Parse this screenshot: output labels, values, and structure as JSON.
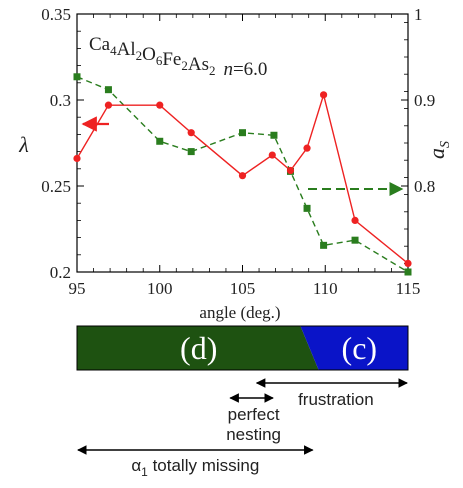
{
  "chart_data": {
    "type": "line",
    "annotation": {
      "compound_base": "Ca",
      "compound_parts": [
        {
          "text": "Ca",
          "sub": "4"
        },
        {
          "text": "Al",
          "sub": "2"
        },
        {
          "text": "O",
          "sub": "6"
        },
        {
          "text": "Fe",
          "sub": "2"
        },
        {
          "text": "As",
          "sub": "2"
        }
      ],
      "n_label": "n",
      "n_value": "=6.0"
    },
    "xlabel": "angle (deg.)",
    "ylabel_left": "λ",
    "ylabel_right_main": "a",
    "ylabel_right_sub": "S",
    "xlim": [
      95,
      115
    ],
    "ylim_left": [
      0.2,
      0.35
    ],
    "ylim_right": [
      0.7,
      1.0
    ],
    "x_ticks": [
      "95",
      "100",
      "105",
      "110",
      "115"
    ],
    "y_left_ticks": [
      "0.2",
      "0.25",
      "0.3",
      "0.35"
    ],
    "y_right_ticks": [
      "0.8",
      "0.9",
      "1"
    ],
    "series": [
      {
        "axis": "left",
        "color": "#ee2222",
        "marker": "circle",
        "style": "solid",
        "points": [
          [
            95,
            0.266
          ],
          [
            96.9,
            0.297
          ],
          [
            100,
            0.297
          ],
          [
            101.9,
            0.281
          ],
          [
            105,
            0.256
          ],
          [
            106.8,
            0.268
          ],
          [
            107.9,
            0.259
          ],
          [
            108.9,
            0.272
          ],
          [
            109.9,
            0.303
          ],
          [
            111.8,
            0.23
          ],
          [
            115,
            0.205
          ]
        ]
      },
      {
        "axis": "right",
        "color": "#2a7d1e",
        "marker": "square",
        "style": "dashed",
        "points": [
          [
            95,
            0.927
          ],
          [
            96.9,
            0.912
          ],
          [
            100,
            0.852
          ],
          [
            101.9,
            0.84
          ],
          [
            105,
            0.862
          ],
          [
            106.9,
            0.859
          ],
          [
            107.9,
            0.817
          ],
          [
            108.9,
            0.774
          ],
          [
            109.9,
            0.731
          ],
          [
            111.8,
            0.737
          ],
          [
            115,
            0.7
          ]
        ]
      }
    ]
  },
  "phase_bar": {
    "green_label": "(d)",
    "blue_label": "(c)",
    "green_color": "#1e5211",
    "blue_color": "#0a14c8",
    "range_start": 95,
    "boundary_top": 108.5,
    "boundary_bottom": 109.6,
    "range_end": 115
  },
  "ranges": [
    {
      "key": "perfect",
      "lines": [
        "perfect",
        "nesting"
      ],
      "from": 104.2,
      "to": 106.9
    },
    {
      "key": "frustration",
      "lines": [
        "frustration"
      ],
      "from": 105.8,
      "to": 115
    },
    {
      "key": "alpha",
      "prefix": "α",
      "prefix_sub": "1",
      "lines": [
        " totally missing"
      ],
      "from": 95,
      "to": 109.3
    }
  ]
}
